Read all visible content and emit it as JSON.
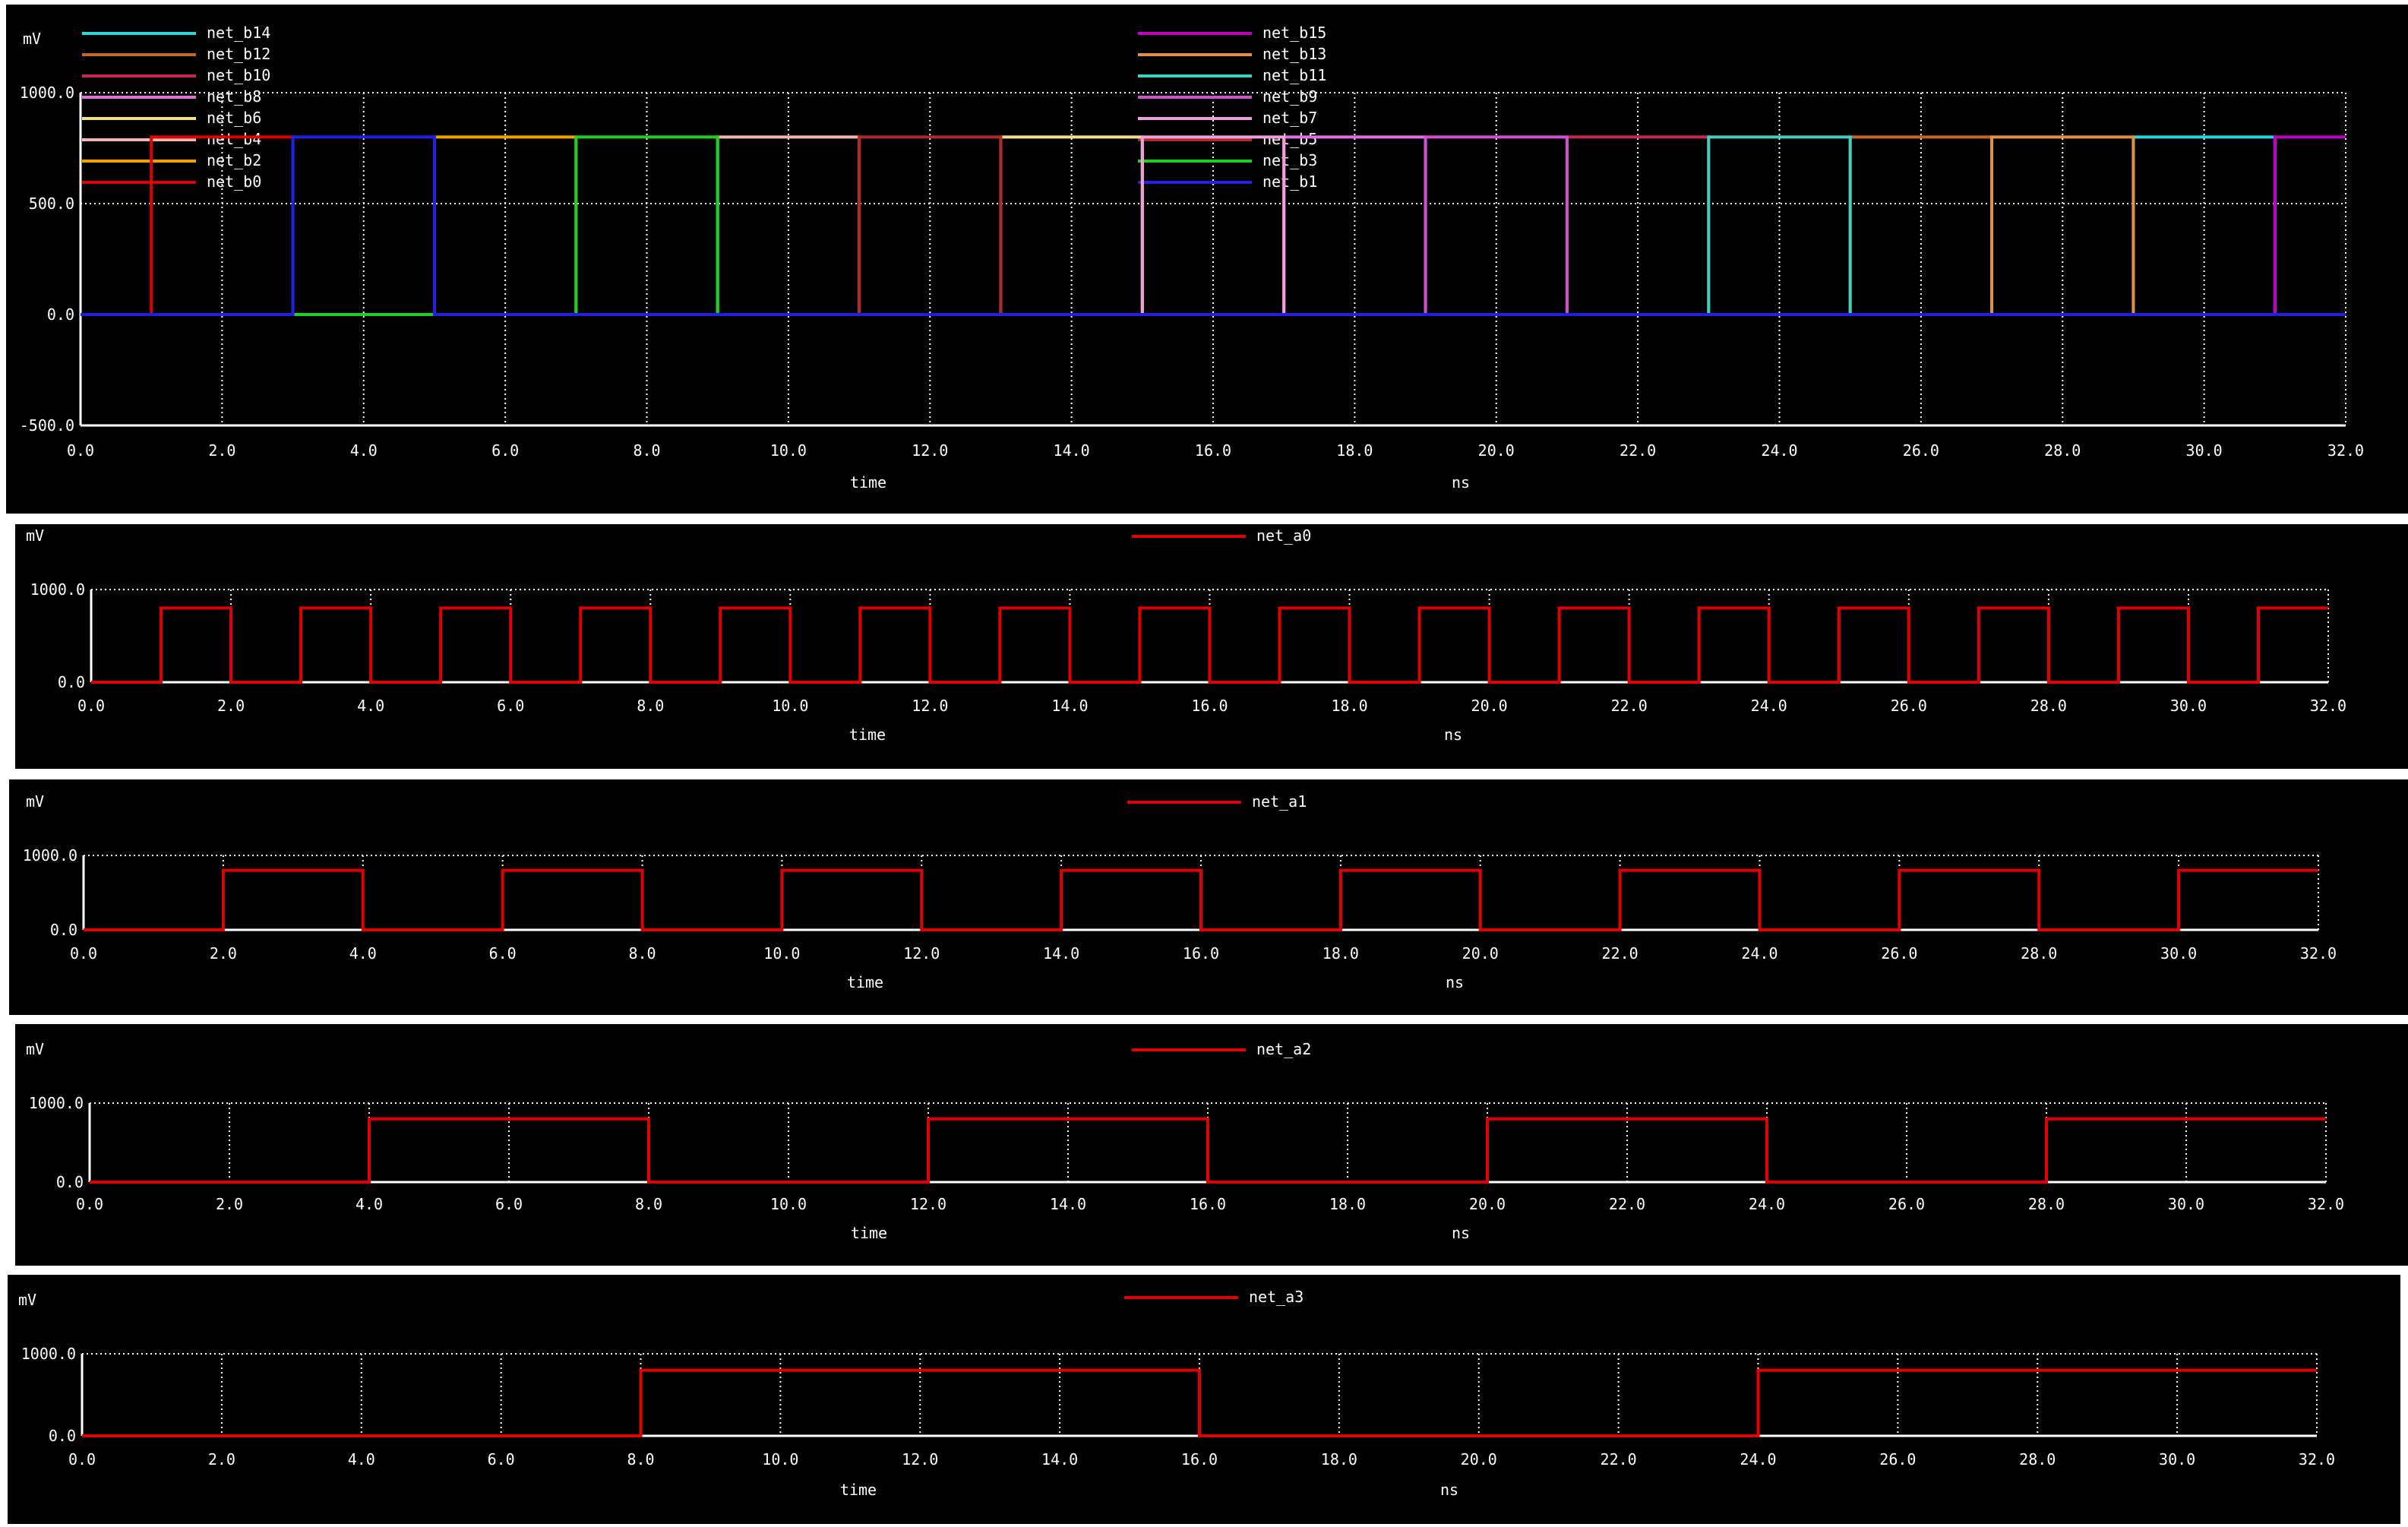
{
  "colors": {
    "background": "#000000",
    "foreground": "#ffffff",
    "grid": "#ffffff",
    "net_a_trace": "#e00000"
  },
  "chart_data": [
    {
      "type": "line",
      "y_unit": "mV",
      "xlabel": "time",
      "x_unit": "ns",
      "xlim": [
        0,
        32
      ],
      "ylim": [
        -500,
        1000
      ],
      "x_ticks": [
        "0.0",
        "2.0",
        "4.0",
        "6.0",
        "8.0",
        "10.0",
        "12.0",
        "14.0",
        "16.0",
        "18.0",
        "20.0",
        "22.0",
        "24.0",
        "26.0",
        "28.0",
        "30.0",
        "32.0"
      ],
      "y_ticks": [
        "-500.0",
        "0.0",
        "500.0",
        "1000.0"
      ],
      "grid": true,
      "legend_placement": "top",
      "high_level_mV": 800,
      "low_level_mV": 0,
      "series": [
        {
          "name": "net_b14",
          "color": "#29d8d8",
          "high_intervals": [
            [
              29,
              31
            ]
          ]
        },
        {
          "name": "net_b12",
          "color": "#c86428",
          "high_intervals": [
            [
              25,
              27
            ]
          ]
        },
        {
          "name": "net_b10",
          "color": "#c82850",
          "high_intervals": [
            [
              21,
              23
            ]
          ]
        },
        {
          "name": "net_b8",
          "color": "#e070e0",
          "high_intervals": [
            [
              17,
              19
            ]
          ]
        },
        {
          "name": "net_b6",
          "color": "#f0e090",
          "high_intervals": [
            [
              13,
              15
            ]
          ]
        },
        {
          "name": "net_b4",
          "color": "#f0b8b0",
          "high_intervals": [
            [
              9,
              11
            ]
          ]
        },
        {
          "name": "net_b2",
          "color": "#f0a000",
          "high_intervals": [
            [
              5,
              7
            ]
          ]
        },
        {
          "name": "net_b0",
          "color": "#e00000",
          "high_intervals": [
            [
              1,
              3
            ]
          ]
        },
        {
          "name": "net_b15",
          "color": "#c000c0",
          "high_intervals": [
            [
              31,
              32
            ]
          ]
        },
        {
          "name": "net_b13",
          "color": "#e09040",
          "high_intervals": [
            [
              27,
              29
            ]
          ]
        },
        {
          "name": "net_b11",
          "color": "#40d0c0",
          "high_intervals": [
            [
              23,
              25
            ]
          ]
        },
        {
          "name": "net_b9",
          "color": "#d050d0",
          "high_intervals": [
            [
              19,
              21
            ]
          ]
        },
        {
          "name": "net_b7",
          "color": "#f0a0d8",
          "high_intervals": [
            [
              15,
              17
            ]
          ]
        },
        {
          "name": "net_b5",
          "color": "#b02828",
          "high_intervals": [
            [
              11,
              13
            ]
          ]
        },
        {
          "name": "net_b3",
          "color": "#20d020",
          "high_intervals": [
            [
              7,
              9
            ]
          ]
        },
        {
          "name": "net_b1",
          "color": "#2020e0",
          "high_intervals": [
            [
              3,
              5
            ]
          ]
        }
      ]
    },
    {
      "type": "line",
      "y_unit": "mV",
      "xlabel": "time",
      "x_unit": "ns",
      "xlim": [
        0,
        32
      ],
      "ylim": [
        0,
        1000
      ],
      "x_ticks": [
        "0.0",
        "2.0",
        "4.0",
        "6.0",
        "8.0",
        "10.0",
        "12.0",
        "14.0",
        "16.0",
        "18.0",
        "20.0",
        "22.0",
        "24.0",
        "26.0",
        "28.0",
        "30.0",
        "32.0"
      ],
      "y_ticks": [
        "0.0",
        "1000.0"
      ],
      "grid": true,
      "legend_placement": "top",
      "high_level_mV": 800,
      "low_level_mV": 0,
      "series": [
        {
          "name": "net_a0",
          "color": "#e00000",
          "high_intervals": [
            [
              1,
              2
            ],
            [
              3,
              4
            ],
            [
              5,
              6
            ],
            [
              7,
              8
            ],
            [
              9,
              10
            ],
            [
              11,
              12
            ],
            [
              13,
              14
            ],
            [
              15,
              16
            ],
            [
              17,
              18
            ],
            [
              19,
              20
            ],
            [
              21,
              22
            ],
            [
              23,
              24
            ],
            [
              25,
              26
            ],
            [
              27,
              28
            ],
            [
              29,
              30
            ],
            [
              31,
              32
            ]
          ]
        }
      ]
    },
    {
      "type": "line",
      "y_unit": "mV",
      "xlabel": "time",
      "x_unit": "ns",
      "xlim": [
        0,
        32
      ],
      "ylim": [
        0,
        1000
      ],
      "x_ticks": [
        "0.0",
        "2.0",
        "4.0",
        "6.0",
        "8.0",
        "10.0",
        "12.0",
        "14.0",
        "16.0",
        "18.0",
        "20.0",
        "22.0",
        "24.0",
        "26.0",
        "28.0",
        "30.0",
        "32.0"
      ],
      "y_ticks": [
        "0.0",
        "1000.0"
      ],
      "grid": true,
      "legend_placement": "top",
      "high_level_mV": 800,
      "low_level_mV": 0,
      "series": [
        {
          "name": "net_a1",
          "color": "#e00000",
          "high_intervals": [
            [
              2,
              4
            ],
            [
              6,
              8
            ],
            [
              10,
              12
            ],
            [
              14,
              16
            ],
            [
              18,
              20
            ],
            [
              22,
              24
            ],
            [
              26,
              28
            ],
            [
              30,
              32
            ]
          ]
        }
      ]
    },
    {
      "type": "line",
      "y_unit": "mV",
      "xlabel": "time",
      "x_unit": "ns",
      "xlim": [
        0,
        32
      ],
      "ylim": [
        0,
        1000
      ],
      "x_ticks": [
        "0.0",
        "2.0",
        "4.0",
        "6.0",
        "8.0",
        "10.0",
        "12.0",
        "14.0",
        "16.0",
        "18.0",
        "20.0",
        "22.0",
        "24.0",
        "26.0",
        "28.0",
        "30.0",
        "32.0"
      ],
      "y_ticks": [
        "0.0",
        "1000.0"
      ],
      "grid": true,
      "legend_placement": "top",
      "high_level_mV": 800,
      "low_level_mV": 0,
      "series": [
        {
          "name": "net_a2",
          "color": "#e00000",
          "high_intervals": [
            [
              4,
              8
            ],
            [
              12,
              16
            ],
            [
              20,
              24
            ],
            [
              28,
              32
            ]
          ]
        }
      ]
    },
    {
      "type": "line",
      "y_unit": "mV",
      "xlabel": "time",
      "x_unit": "ns",
      "xlim": [
        0,
        32
      ],
      "ylim": [
        0,
        1000
      ],
      "x_ticks": [
        "0.0",
        "2.0",
        "4.0",
        "6.0",
        "8.0",
        "10.0",
        "12.0",
        "14.0",
        "16.0",
        "18.0",
        "20.0",
        "22.0",
        "24.0",
        "26.0",
        "28.0",
        "30.0",
        "32.0"
      ],
      "y_ticks": [
        "0.0",
        "1000.0"
      ],
      "grid": true,
      "legend_placement": "top",
      "high_level_mV": 800,
      "low_level_mV": 0,
      "series": [
        {
          "name": "net_a3",
          "color": "#e00000",
          "high_intervals": [
            [
              8,
              16
            ],
            [
              24,
              32
            ]
          ]
        }
      ]
    }
  ]
}
